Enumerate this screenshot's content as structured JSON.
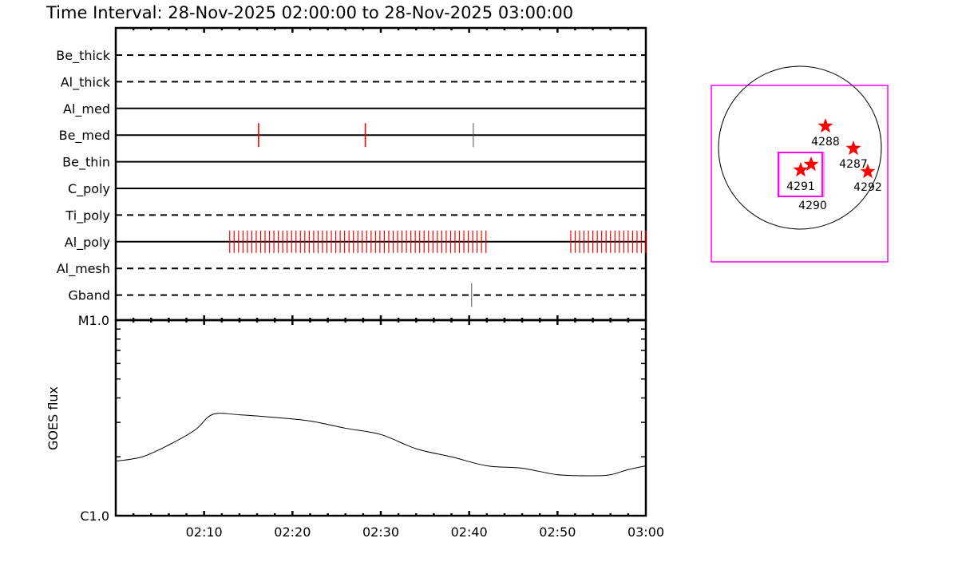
{
  "title": "Time Interval: 28-Nov-2025 02:00:00 to 28-Nov-2025 03:00:00",
  "colors": {
    "observation": "#ff0000",
    "observation_alt": "#555555",
    "fov_box": "#ff00ff",
    "star": "#ff0000",
    "axis": "#000000"
  },
  "chart_data": [
    {
      "type": "timeline",
      "xlim": [
        "02:00",
        "03:00"
      ],
      "channels": [
        {
          "name": "Be_thick",
          "style": "dashed",
          "obs": []
        },
        {
          "name": "Al_thick",
          "style": "dashed",
          "obs": []
        },
        {
          "name": "Al_med",
          "style": "solid",
          "obs": []
        },
        {
          "name": "Be_med",
          "style": "solid",
          "obs": [
            {
              "t": "02:16:10",
              "color": "red"
            },
            {
              "t": "02:28:15",
              "color": "red"
            },
            {
              "t": "02:40:28",
              "color": "gray"
            }
          ]
        },
        {
          "name": "Be_thin",
          "style": "solid",
          "obs": []
        },
        {
          "name": "C_poly",
          "style": "solid",
          "obs": []
        },
        {
          "name": "Ti_poly",
          "style": "dashed",
          "obs": []
        },
        {
          "name": "Al_poly",
          "style": "solid",
          "obs_series": [
            {
              "start": "02:12:54",
              "end": "02:41:54",
              "cadence_s": 30,
              "color": "red"
            },
            {
              "start": "02:51:30",
              "end": "03:00:00",
              "cadence_s": 30,
              "color": "red"
            }
          ]
        },
        {
          "name": "Al_mesh",
          "style": "dashed",
          "obs": []
        },
        {
          "name": "Gband",
          "style": "dashed",
          "obs": [
            {
              "t": "02:40:17",
              "color": "gray"
            }
          ]
        }
      ]
    },
    {
      "type": "line",
      "ylabel": "GOES flux",
      "yscale": "log",
      "ylim": [
        1e-06,
        1e-05
      ],
      "ytick_labels": [
        "C1.0",
        "M1.0"
      ],
      "xtick_labels": [
        "02:10",
        "02:20",
        "02:30",
        "02:40",
        "02:50",
        "03:00"
      ],
      "x": [
        "02:00",
        "02:03",
        "02:06",
        "02:09",
        "02:11",
        "02:14",
        "02:18",
        "02:22",
        "02:26",
        "02:30",
        "02:34",
        "02:38",
        "02:42",
        "02:46",
        "02:50",
        "02:54",
        "02:56",
        "02:58",
        "03:00"
      ],
      "y": [
        1.9e-06,
        2e-06,
        2.3e-06,
        2.75e-06,
        3.3e-06,
        3.28e-06,
        3.18e-06,
        3.05e-06,
        2.8e-06,
        2.6e-06,
        2.2e-06,
        2e-06,
        1.8e-06,
        1.75e-06,
        1.62e-06,
        1.6e-06,
        1.62e-06,
        1.72e-06,
        1.8e-06
      ]
    }
  ],
  "sun_map": {
    "regions": [
      {
        "label": "4288"
      },
      {
        "label": "4287"
      },
      {
        "label": "4292"
      },
      {
        "label": "4290"
      },
      {
        "label": "4291"
      }
    ]
  }
}
